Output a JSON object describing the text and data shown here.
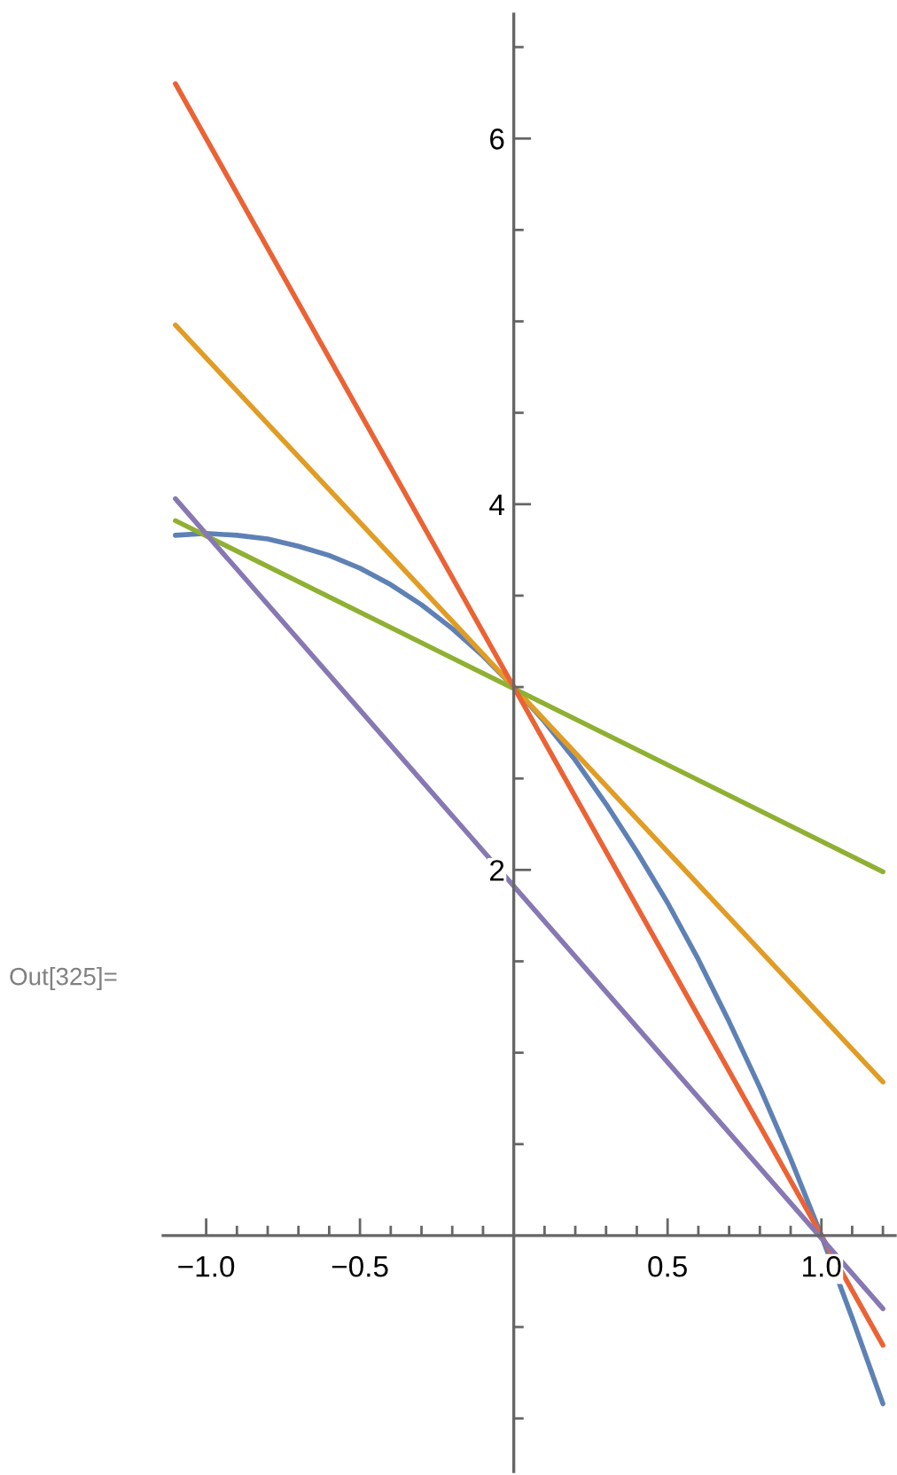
{
  "chart_data": {
    "type": "line",
    "annotations": [
      "Out[325]="
    ],
    "xlim": [
      -1.14,
      1.24
    ],
    "ylim": [
      -1.29,
      6.68
    ],
    "xticks": [
      {
        "value": -1.0,
        "label": "−1.0"
      },
      {
        "value": -0.9,
        "label": null
      },
      {
        "value": -0.8,
        "label": null
      },
      {
        "value": -0.7,
        "label": null
      },
      {
        "value": -0.6,
        "label": null
      },
      {
        "value": -0.5,
        "label": "−0.5"
      },
      {
        "value": -0.4,
        "label": null
      },
      {
        "value": -0.3,
        "label": null
      },
      {
        "value": -0.2,
        "label": null
      },
      {
        "value": -0.1,
        "label": null
      },
      {
        "value": 0.1,
        "label": null
      },
      {
        "value": 0.2,
        "label": null
      },
      {
        "value": 0.3,
        "label": null
      },
      {
        "value": 0.4,
        "label": null
      },
      {
        "value": 0.5,
        "label": "0.5"
      },
      {
        "value": 0.6,
        "label": null
      },
      {
        "value": 0.7,
        "label": null
      },
      {
        "value": 0.8,
        "label": null
      },
      {
        "value": 0.9,
        "label": null
      },
      {
        "value": 1.0,
        "label": "1.0"
      },
      {
        "value": 1.1,
        "label": null
      },
      {
        "value": 1.2,
        "label": null
      }
    ],
    "yticks": [
      {
        "value": -1.0,
        "label": null
      },
      {
        "value": -0.5,
        "label": null
      },
      {
        "value": 0.5,
        "label": null
      },
      {
        "value": 1.0,
        "label": null
      },
      {
        "value": 1.5,
        "label": null
      },
      2,
      {
        "value": 2.5,
        "label": null
      },
      {
        "value": 3.0,
        "label": null
      },
      {
        "value": 3.5,
        "label": null
      },
      4,
      {
        "value": 4.5,
        "label": null
      },
      {
        "value": 5.0,
        "label": null
      },
      {
        "value": 5.5,
        "label": null
      },
      6,
      {
        "value": 6.5,
        "label": null
      }
    ],
    "grid": false,
    "marker": "none",
    "line_style": "solid",
    "series": [
      {
        "color": "#5e81b5",
        "x": [
          -1.1,
          -1.0,
          -0.9,
          -0.8,
          -0.7,
          -0.6,
          -0.5,
          -0.4,
          -0.3,
          -0.2,
          -0.1,
          0,
          0.1,
          0.2,
          0.3,
          0.4,
          0.5,
          0.6,
          0.7,
          0.8,
          0.9,
          1.0,
          1.1,
          1.2
        ],
        "values": [
          3.83,
          3.84,
          3.83,
          3.81,
          3.77,
          3.72,
          3.65,
          3.56,
          3.45,
          3.32,
          3.17,
          3.0,
          2.81,
          2.6,
          2.36,
          2.1,
          1.82,
          1.51,
          1.17,
          0.81,
          0.42,
          0.0,
          -0.45,
          -0.92
        ]
      },
      {
        "color": "#e19c24",
        "x": [
          -1.1,
          1.2
        ],
        "values": [
          4.98,
          0.84
        ]
      },
      {
        "color": "#8fb032",
        "x": [
          -1.1,
          1.2
        ],
        "values": [
          3.91,
          1.99
        ]
      },
      {
        "color": "#eb6235",
        "x": [
          -1.1,
          1.2
        ],
        "values": [
          6.3,
          -0.6
        ]
      },
      {
        "color": "#8778b3",
        "x": [
          -1.1,
          1.2
        ],
        "values": [
          4.03,
          -0.4
        ]
      }
    ]
  }
}
